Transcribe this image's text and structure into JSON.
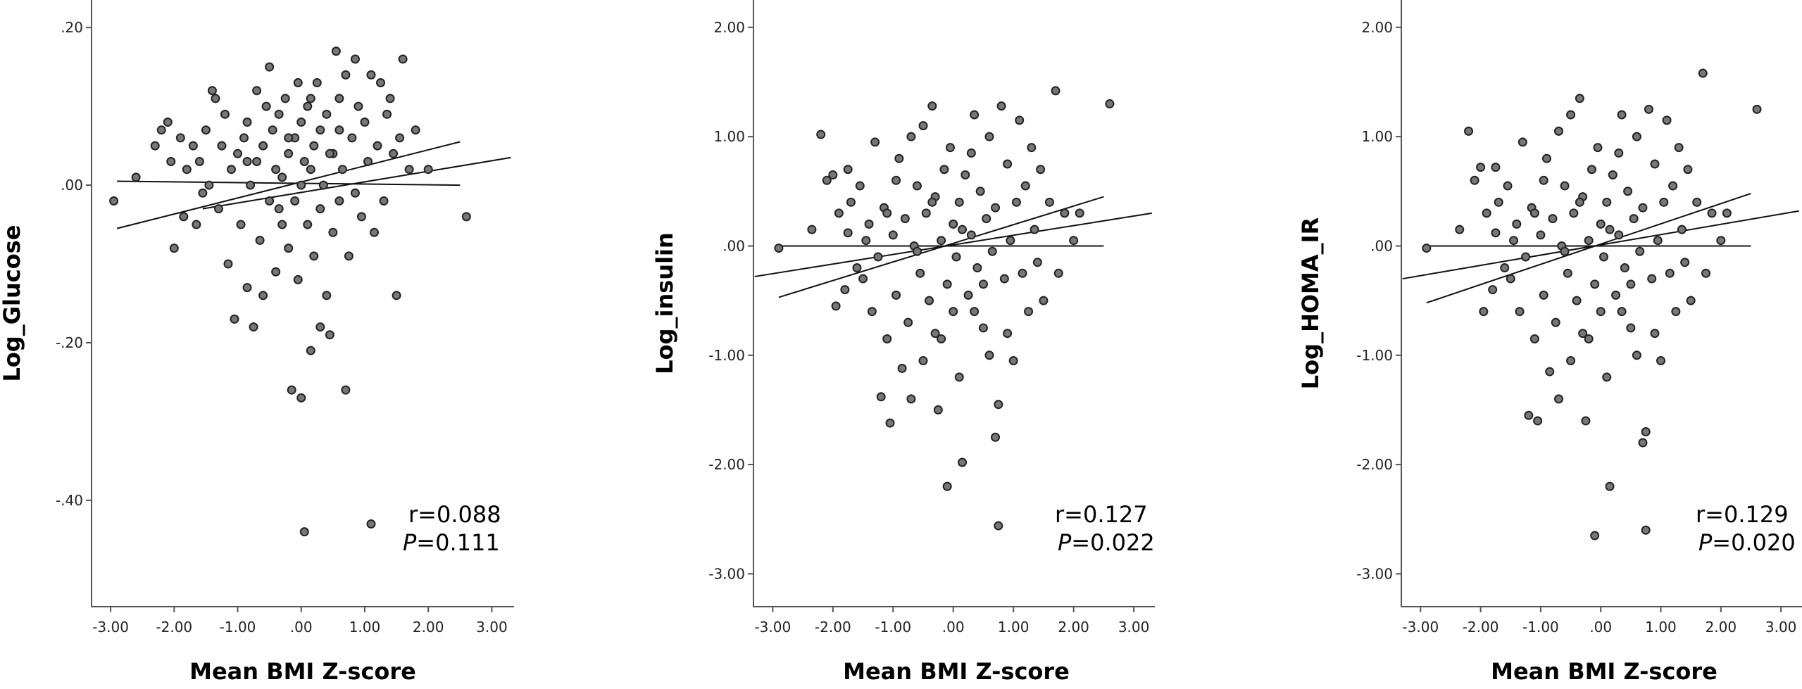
{
  "chart_data": [
    {
      "type": "scatter",
      "xlabel": "Mean BMI Z-score",
      "ylabel": "Log_Glucose",
      "xlim": [
        -3.3,
        3.35
      ],
      "ylim": [
        -0.535,
        0.235
      ],
      "xticks": [
        "-3.00",
        "-2.00",
        "-1.00",
        ".00",
        "1.00",
        "2.00",
        "3.00"
      ],
      "yticks": [
        ".20",
        ".00",
        "-.20",
        "-.40"
      ],
      "stat_r": "r=0.088",
      "stat_p_label": "P",
      "stat_p_value": "=0.111",
      "fit_lines": [
        {
          "x": [
            -2.9,
            2.5
          ],
          "y": [
            0.005,
            0.0
          ]
        },
        {
          "x": [
            -2.9,
            2.5
          ],
          "y": [
            -0.055,
            0.055
          ]
        },
        {
          "x": [
            -1.55,
            3.3
          ],
          "y": [
            -0.03,
            0.035
          ]
        }
      ],
      "points": [
        [
          -2.95,
          -0.02
        ],
        [
          -2.6,
          0.01
        ],
        [
          -2.3,
          0.05
        ],
        [
          -2.2,
          0.07
        ],
        [
          -2.1,
          0.08
        ],
        [
          -2.05,
          0.03
        ],
        [
          -2.0,
          -0.08
        ],
        [
          -1.9,
          0.06
        ],
        [
          -1.85,
          -0.04
        ],
        [
          -1.8,
          0.02
        ],
        [
          -1.7,
          0.05
        ],
        [
          -1.65,
          -0.05
        ],
        [
          -1.6,
          0.03
        ],
        [
          -1.55,
          -0.01
        ],
        [
          -1.5,
          0.07
        ],
        [
          -1.45,
          0.0
        ],
        [
          -1.4,
          0.12
        ],
        [
          -1.35,
          0.11
        ],
        [
          -1.3,
          -0.03
        ],
        [
          -1.25,
          0.05
        ],
        [
          -1.2,
          0.09
        ],
        [
          -1.15,
          -0.1
        ],
        [
          -1.1,
          0.02
        ],
        [
          -1.05,
          -0.17
        ],
        [
          -1.0,
          0.04
        ],
        [
          -0.95,
          -0.05
        ],
        [
          -0.9,
          0.06
        ],
        [
          -0.85,
          -0.13
        ],
        [
          -0.85,
          0.08
        ],
        [
          -0.8,
          0.0
        ],
        [
          -0.75,
          -0.18
        ],
        [
          -0.7,
          0.03
        ],
        [
          -0.7,
          0.12
        ],
        [
          -0.65,
          -0.07
        ],
        [
          -0.6,
          0.05
        ],
        [
          -0.55,
          0.1
        ],
        [
          -0.5,
          -0.02
        ],
        [
          -0.5,
          0.15
        ],
        [
          -0.45,
          0.07
        ],
        [
          -0.4,
          -0.11
        ],
        [
          -0.4,
          0.02
        ],
        [
          -0.35,
          0.09
        ],
        [
          -0.3,
          -0.05
        ],
        [
          -0.3,
          0.01
        ],
        [
          -0.25,
          0.11
        ],
        [
          -0.2,
          -0.08
        ],
        [
          -0.2,
          0.04
        ],
        [
          -0.15,
          -0.26
        ],
        [
          -0.1,
          0.06
        ],
        [
          -0.1,
          -0.02
        ],
        [
          -0.05,
          0.13
        ],
        [
          -0.05,
          -0.12
        ],
        [
          0.0,
          0.0
        ],
        [
          0.0,
          0.08
        ],
        [
          0.0,
          -0.27
        ],
        [
          0.05,
          -0.44
        ],
        [
          0.05,
          0.03
        ],
        [
          0.1,
          -0.05
        ],
        [
          0.1,
          0.1
        ],
        [
          0.15,
          -0.21
        ],
        [
          0.15,
          0.02
        ],
        [
          0.2,
          0.05
        ],
        [
          0.2,
          -0.09
        ],
        [
          0.25,
          0.13
        ],
        [
          0.3,
          -0.03
        ],
        [
          0.3,
          0.07
        ],
        [
          0.35,
          0.0
        ],
        [
          0.4,
          -0.14
        ],
        [
          0.4,
          0.09
        ],
        [
          0.45,
          -0.19
        ],
        [
          0.5,
          0.04
        ],
        [
          0.5,
          -0.06
        ],
        [
          0.55,
          0.17
        ],
        [
          0.6,
          -0.02
        ],
        [
          0.6,
          0.11
        ],
        [
          0.65,
          0.02
        ],
        [
          0.7,
          -0.26
        ],
        [
          0.7,
          0.14
        ],
        [
          0.75,
          -0.09
        ],
        [
          0.8,
          0.06
        ],
        [
          0.85,
          -0.01
        ],
        [
          0.85,
          0.16
        ],
        [
          0.9,
          0.1
        ],
        [
          0.95,
          -0.04
        ],
        [
          1.0,
          0.08
        ],
        [
          1.05,
          0.03
        ],
        [
          1.1,
          0.14
        ],
        [
          1.1,
          -0.43
        ],
        [
          1.15,
          -0.06
        ],
        [
          1.2,
          0.05
        ],
        [
          1.25,
          0.13
        ],
        [
          1.3,
          -0.02
        ],
        [
          1.35,
          0.09
        ],
        [
          1.4,
          0.11
        ],
        [
          1.45,
          0.04
        ],
        [
          1.5,
          -0.14
        ],
        [
          1.55,
          0.06
        ],
        [
          1.6,
          0.16
        ],
        [
          1.7,
          0.02
        ],
        [
          1.8,
          0.07
        ],
        [
          2.0,
          0.02
        ],
        [
          2.6,
          -0.04
        ],
        [
          -0.6,
          -0.14
        ],
        [
          0.3,
          -0.18
        ],
        [
          -0.2,
          0.06
        ],
        [
          0.45,
          0.04
        ],
        [
          -0.85,
          0.03
        ],
        [
          0.15,
          0.11
        ],
        [
          -0.35,
          -0.03
        ],
        [
          0.6,
          0.07
        ]
      ]
    },
    {
      "type": "scatter",
      "xlabel": "Mean BMI Z-score",
      "ylabel": "Log_insulin",
      "xlim": [
        -3.32,
        3.35
      ],
      "ylim": [
        -3.3,
        2.25
      ],
      "xticks": [
        "-3.00",
        "-2.00",
        "-1.00",
        ".00",
        "1.00",
        "2.00",
        "3.00"
      ],
      "yticks": [
        "2.00",
        "1.00",
        ".00",
        "-1.00",
        "-2.00",
        "-3.00"
      ],
      "stat_r": "r=0.127",
      "stat_p_label": "P",
      "stat_p_value": "=0.022",
      "fit_lines": [
        {
          "x": [
            -2.9,
            2.5
          ],
          "y": [
            0.0,
            0.0
          ]
        },
        {
          "x": [
            -2.9,
            2.5
          ],
          "y": [
            -0.47,
            0.45
          ]
        },
        {
          "x": [
            -3.3,
            3.3
          ],
          "y": [
            -0.28,
            0.3
          ]
        }
      ],
      "points": [
        [
          -2.9,
          -0.02
        ],
        [
          -2.35,
          0.15
        ],
        [
          -2.2,
          1.02
        ],
        [
          -2.1,
          0.6
        ],
        [
          -2.0,
          0.65
        ],
        [
          -1.95,
          -0.55
        ],
        [
          -1.9,
          0.3
        ],
        [
          -1.8,
          -0.4
        ],
        [
          -1.75,
          0.7
        ],
        [
          -1.7,
          0.4
        ],
        [
          -1.6,
          -0.2
        ],
        [
          -1.55,
          0.55
        ],
        [
          -1.5,
          -0.3
        ],
        [
          -1.45,
          0.05
        ],
        [
          -1.4,
          0.2
        ],
        [
          -1.35,
          -0.6
        ],
        [
          -1.3,
          0.95
        ],
        [
          -1.25,
          -0.1
        ],
        [
          -1.2,
          -1.38
        ],
        [
          -1.15,
          0.35
        ],
        [
          -1.1,
          -0.85
        ],
        [
          -1.05,
          -1.62
        ],
        [
          -1.0,
          0.1
        ],
        [
          -0.95,
          -0.45
        ],
        [
          -0.9,
          0.8
        ],
        [
          -0.85,
          -1.12
        ],
        [
          -0.8,
          0.25
        ],
        [
          -0.75,
          -0.7
        ],
        [
          -0.7,
          1.0
        ],
        [
          -0.7,
          -1.4
        ],
        [
          -0.65,
          0.0
        ],
        [
          -0.6,
          0.55
        ],
        [
          -0.55,
          -0.25
        ],
        [
          -0.5,
          1.1
        ],
        [
          -0.5,
          -1.05
        ],
        [
          -0.45,
          0.3
        ],
        [
          -0.4,
          -0.5
        ],
        [
          -0.35,
          1.28
        ],
        [
          -0.3,
          -0.8
        ],
        [
          -0.3,
          0.45
        ],
        [
          -0.25,
          -1.5
        ],
        [
          -0.2,
          0.05
        ],
        [
          -0.15,
          0.7
        ],
        [
          -0.1,
          -0.35
        ],
        [
          -0.1,
          -2.2
        ],
        [
          -0.05,
          0.9
        ],
        [
          0.0,
          -0.6
        ],
        [
          0.0,
          0.2
        ],
        [
          0.05,
          -0.1
        ],
        [
          0.1,
          0.4
        ],
        [
          0.1,
          -1.2
        ],
        [
          0.15,
          -1.98
        ],
        [
          0.2,
          0.65
        ],
        [
          0.25,
          -0.45
        ],
        [
          0.3,
          0.1
        ],
        [
          0.35,
          1.2
        ],
        [
          0.4,
          -0.2
        ],
        [
          0.45,
          0.5
        ],
        [
          0.5,
          -0.75
        ],
        [
          0.55,
          0.25
        ],
        [
          0.6,
          -1.0
        ],
        [
          0.6,
          1.0
        ],
        [
          0.65,
          -0.05
        ],
        [
          0.7,
          -1.75
        ],
        [
          0.7,
          0.35
        ],
        [
          0.75,
          -2.56
        ],
        [
          0.75,
          -1.45
        ],
        [
          0.8,
          1.28
        ],
        [
          0.85,
          -0.3
        ],
        [
          0.9,
          0.75
        ],
        [
          0.95,
          0.05
        ],
        [
          1.0,
          -1.05
        ],
        [
          1.05,
          0.4
        ],
        [
          1.1,
          1.15
        ],
        [
          1.15,
          -0.25
        ],
        [
          1.2,
          0.55
        ],
        [
          1.25,
          -0.6
        ],
        [
          1.3,
          0.9
        ],
        [
          1.35,
          0.15
        ],
        [
          1.4,
          -0.15
        ],
        [
          1.45,
          0.7
        ],
        [
          1.5,
          -0.5
        ],
        [
          1.6,
          0.4
        ],
        [
          1.7,
          1.42
        ],
        [
          1.75,
          -0.25
        ],
        [
          1.85,
          0.3
        ],
        [
          2.0,
          0.05
        ],
        [
          2.1,
          0.3
        ],
        [
          2.6,
          1.3
        ],
        [
          -1.75,
          0.12
        ],
        [
          -0.95,
          0.6
        ],
        [
          -0.2,
          -0.85
        ],
        [
          0.3,
          0.85
        ],
        [
          0.5,
          -0.35
        ],
        [
          -0.6,
          -0.05
        ],
        [
          0.15,
          0.15
        ],
        [
          -1.1,
          0.3
        ],
        [
          0.9,
          -0.8
        ],
        [
          -0.35,
          0.4
        ],
        [
          0.35,
          -0.6
        ]
      ]
    },
    {
      "type": "scatter",
      "xlabel": "Mean BMI Z-score",
      "ylabel": "Log_HOMA_IR",
      "xlim": [
        -3.32,
        3.35
      ],
      "ylim": [
        -3.3,
        2.25
      ],
      "xticks": [
        "-3.00",
        "-2.00",
        "-1.00",
        ".00",
        "1.00",
        "2.00",
        "3.00"
      ],
      "yticks": [
        "2.00",
        "1.00",
        ".00",
        "-1.00",
        "-2.00",
        "-3.00"
      ],
      "stat_r": "r=0.129",
      "stat_p_label": "P",
      "stat_p_value": "=0.020",
      "fit_lines": [
        {
          "x": [
            -2.9,
            2.5
          ],
          "y": [
            0.0,
            0.0
          ]
        },
        {
          "x": [
            -2.9,
            2.5
          ],
          "y": [
            -0.52,
            0.48
          ]
        },
        {
          "x": [
            -3.3,
            3.3
          ],
          "y": [
            -0.3,
            0.32
          ]
        }
      ],
      "points": [
        [
          -2.9,
          -0.02
        ],
        [
          -2.35,
          0.15
        ],
        [
          -2.2,
          1.05
        ],
        [
          -2.1,
          0.6
        ],
        [
          -2.0,
          0.72
        ],
        [
          -1.95,
          -0.6
        ],
        [
          -1.9,
          0.3
        ],
        [
          -1.8,
          -0.4
        ],
        [
          -1.75,
          0.72
        ],
        [
          -1.7,
          0.4
        ],
        [
          -1.6,
          -0.2
        ],
        [
          -1.55,
          0.55
        ],
        [
          -1.5,
          -0.3
        ],
        [
          -1.45,
          0.05
        ],
        [
          -1.4,
          0.2
        ],
        [
          -1.35,
          -0.6
        ],
        [
          -1.3,
          0.95
        ],
        [
          -1.25,
          -0.1
        ],
        [
          -1.2,
          -1.55
        ],
        [
          -1.15,
          0.35
        ],
        [
          -1.1,
          -0.85
        ],
        [
          -1.05,
          -1.6
        ],
        [
          -1.0,
          0.1
        ],
        [
          -0.95,
          -0.45
        ],
        [
          -0.9,
          0.8
        ],
        [
          -0.85,
          -1.15
        ],
        [
          -0.8,
          0.25
        ],
        [
          -0.75,
          -0.7
        ],
        [
          -0.7,
          1.05
        ],
        [
          -0.7,
          -1.4
        ],
        [
          -0.65,
          0.0
        ],
        [
          -0.6,
          0.55
        ],
        [
          -0.55,
          -0.25
        ],
        [
          -0.5,
          1.2
        ],
        [
          -0.5,
          -1.05
        ],
        [
          -0.45,
          0.3
        ],
        [
          -0.4,
          -0.5
        ],
        [
          -0.35,
          1.35
        ],
        [
          -0.3,
          -0.8
        ],
        [
          -0.3,
          0.45
        ],
        [
          -0.25,
          -1.6
        ],
        [
          -0.2,
          0.05
        ],
        [
          -0.15,
          0.7
        ],
        [
          -0.1,
          -0.35
        ],
        [
          -0.1,
          -2.65
        ],
        [
          -0.05,
          0.9
        ],
        [
          0.0,
          -0.6
        ],
        [
          0.0,
          0.2
        ],
        [
          0.05,
          -0.1
        ],
        [
          0.1,
          0.4
        ],
        [
          0.1,
          -1.2
        ],
        [
          0.15,
          -2.2
        ],
        [
          0.2,
          0.65
        ],
        [
          0.25,
          -0.45
        ],
        [
          0.3,
          0.1
        ],
        [
          0.35,
          1.2
        ],
        [
          0.4,
          -0.2
        ],
        [
          0.45,
          0.5
        ],
        [
          0.5,
          -0.75
        ],
        [
          0.55,
          0.25
        ],
        [
          0.6,
          -1.0
        ],
        [
          0.6,
          1.0
        ],
        [
          0.65,
          -0.05
        ],
        [
          0.7,
          -1.8
        ],
        [
          0.7,
          0.35
        ],
        [
          0.75,
          -2.6
        ],
        [
          0.75,
          -1.7
        ],
        [
          0.8,
          1.25
        ],
        [
          0.85,
          -0.3
        ],
        [
          0.9,
          0.75
        ],
        [
          0.95,
          0.05
        ],
        [
          1.0,
          -1.05
        ],
        [
          1.05,
          0.4
        ],
        [
          1.1,
          1.15
        ],
        [
          1.15,
          -0.25
        ],
        [
          1.2,
          0.55
        ],
        [
          1.25,
          -0.6
        ],
        [
          1.3,
          0.9
        ],
        [
          1.35,
          0.15
        ],
        [
          1.4,
          -0.15
        ],
        [
          1.45,
          0.7
        ],
        [
          1.5,
          -0.5
        ],
        [
          1.6,
          0.4
        ],
        [
          1.7,
          1.58
        ],
        [
          1.75,
          -0.25
        ],
        [
          1.85,
          0.3
        ],
        [
          2.0,
          0.05
        ],
        [
          2.1,
          0.3
        ],
        [
          2.6,
          1.25
        ],
        [
          -1.75,
          0.12
        ],
        [
          -0.95,
          0.6
        ],
        [
          -0.2,
          -0.85
        ],
        [
          0.3,
          0.85
        ],
        [
          0.5,
          -0.35
        ],
        [
          -0.6,
          -0.05
        ],
        [
          0.15,
          0.15
        ],
        [
          -1.1,
          0.3
        ],
        [
          0.9,
          -0.8
        ],
        [
          -0.35,
          0.4
        ],
        [
          0.35,
          -0.6
        ]
      ]
    }
  ]
}
